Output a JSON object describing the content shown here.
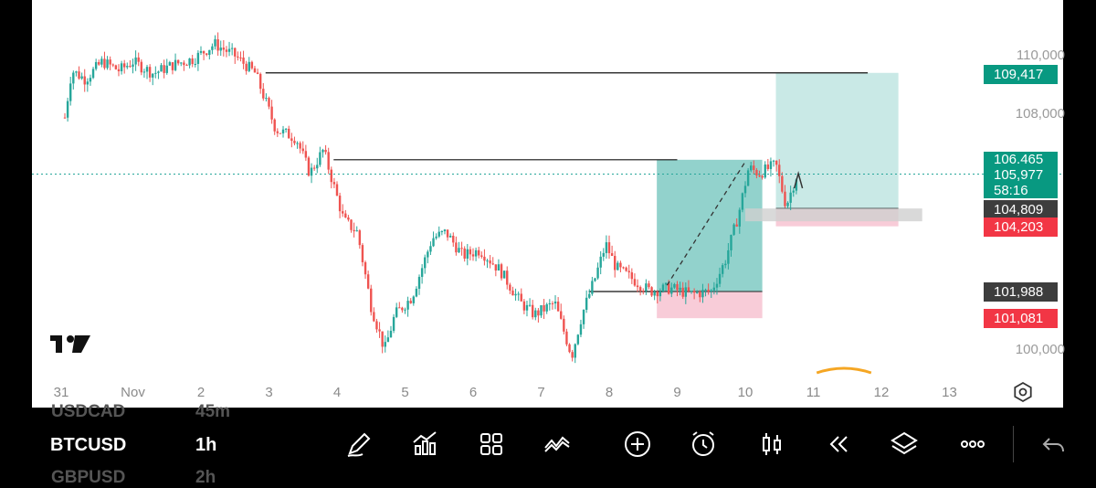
{
  "chart_data": {
    "type": "candlestick",
    "symbol": "BTCUSD",
    "timeframe": "1h",
    "x_ticks": [
      "31",
      "Nov",
      "2",
      "3",
      "4",
      "5",
      "6",
      "7",
      "8",
      "9",
      "10",
      "11",
      "12",
      "13"
    ],
    "y_ticks": [
      "110,000",
      "108,000",
      "100,000"
    ],
    "y_range": [
      99300,
      111800
    ],
    "price_path": [
      {
        "d": 0.0,
        "p": 107900
      },
      {
        "d": 0.1,
        "p": 109500
      },
      {
        "d": 0.3,
        "p": 109200
      },
      {
        "d": 0.55,
        "p": 109800
      },
      {
        "d": 0.8,
        "p": 109500
      },
      {
        "d": 1.0,
        "p": 109800
      },
      {
        "d": 1.3,
        "p": 109400
      },
      {
        "d": 1.6,
        "p": 109700
      },
      {
        "d": 1.9,
        "p": 109900
      },
      {
        "d": 2.2,
        "p": 110400
      },
      {
        "d": 2.5,
        "p": 110000
      },
      {
        "d": 2.8,
        "p": 109400
      },
      {
        "d": 3.1,
        "p": 107500
      },
      {
        "d": 3.4,
        "p": 107200
      },
      {
        "d": 3.6,
        "p": 106000
      },
      {
        "d": 3.8,
        "p": 106800
      },
      {
        "d": 4.1,
        "p": 104400
      },
      {
        "d": 4.3,
        "p": 104000
      },
      {
        "d": 4.5,
        "p": 101500
      },
      {
        "d": 4.7,
        "p": 100000
      },
      {
        "d": 4.85,
        "p": 101200
      },
      {
        "d": 5.1,
        "p": 101800
      },
      {
        "d": 5.4,
        "p": 103800
      },
      {
        "d": 5.6,
        "p": 104000
      },
      {
        "d": 5.85,
        "p": 103200
      },
      {
        "d": 6.1,
        "p": 103400
      },
      {
        "d": 6.4,
        "p": 102700
      },
      {
        "d": 6.7,
        "p": 101600
      },
      {
        "d": 6.9,
        "p": 101200
      },
      {
        "d": 7.2,
        "p": 101600
      },
      {
        "d": 7.45,
        "p": 99800
      },
      {
        "d": 7.6,
        "p": 101200
      },
      {
        "d": 7.8,
        "p": 102500
      },
      {
        "d": 7.95,
        "p": 103600
      },
      {
        "d": 8.1,
        "p": 102800
      },
      {
        "d": 8.35,
        "p": 102400
      },
      {
        "d": 8.6,
        "p": 102000
      },
      {
        "d": 8.9,
        "p": 102100
      },
      {
        "d": 9.2,
        "p": 101900
      },
      {
        "d": 9.5,
        "p": 102000
      },
      {
        "d": 9.7,
        "p": 103000
      },
      {
        "d": 9.9,
        "p": 104600
      },
      {
        "d": 10.05,
        "p": 106200
      },
      {
        "d": 10.2,
        "p": 106000
      },
      {
        "d": 10.45,
        "p": 106300
      },
      {
        "d": 10.6,
        "p": 104900
      },
      {
        "d": 10.75,
        "p": 105900
      }
    ],
    "horizontal_levels": [
      {
        "price": 109417,
        "from_day": 2.95,
        "to_day": 11.8
      },
      {
        "price": 106465,
        "from_day": 3.95,
        "to_day": 9.0
      },
      {
        "price": 101988,
        "from_day": 7.7,
        "to_day": 8.8
      }
    ],
    "positions": [
      {
        "from_day": 8.7,
        "to_day": 10.25,
        "entry": 101988,
        "target": 106465,
        "stop": 101081
      },
      {
        "from_day": 10.45,
        "to_day": 12.25,
        "entry": 104809,
        "target": 109417,
        "stop": 104203
      }
    ],
    "current_price": 105977,
    "price_labels": [
      {
        "text": "109,417",
        "price": 109417,
        "color": "#089981"
      },
      {
        "text": "106.465",
        "price": 106465,
        "color": "#089981"
      },
      {
        "text": "105,977",
        "price": 105977,
        "color": "#089981"
      },
      {
        "text": "58:16",
        "price": 105977,
        "color": "#089981"
      },
      {
        "text": "104,809",
        "price": 104809,
        "color": "#3d3d3d"
      },
      {
        "text": "104,203",
        "price": 104203,
        "color": "#f23645"
      },
      {
        "text": "101,988",
        "price": 101988,
        "color": "#3d3d3d"
      },
      {
        "text": "101,081",
        "price": 101081,
        "color": "#f23645"
      }
    ],
    "colors": {
      "up": "#26a69a",
      "down": "#ef5350",
      "profit_zone": "#26a69a",
      "loss_zone": "#f7c6d4",
      "price_line": "#26a69a"
    },
    "grid": false,
    "logo": "TV"
  },
  "bottom_bar": {
    "watchlist_prev": "USDCAD",
    "watchlist_prev_tf": "45m",
    "symbol": "BTCUSD",
    "timeframe": "1h",
    "watchlist_next": "GBPUSD",
    "watchlist_next_tf": "2h",
    "icons": [
      "pencil-icon",
      "indicators-icon",
      "grid-icon",
      "compare-icon",
      "add-icon",
      "alarm-icon",
      "candle-type-icon",
      "replay-icon",
      "layers-icon",
      "more-icon",
      "back-icon"
    ]
  },
  "settings_icon": "settings-hexagon-icon"
}
